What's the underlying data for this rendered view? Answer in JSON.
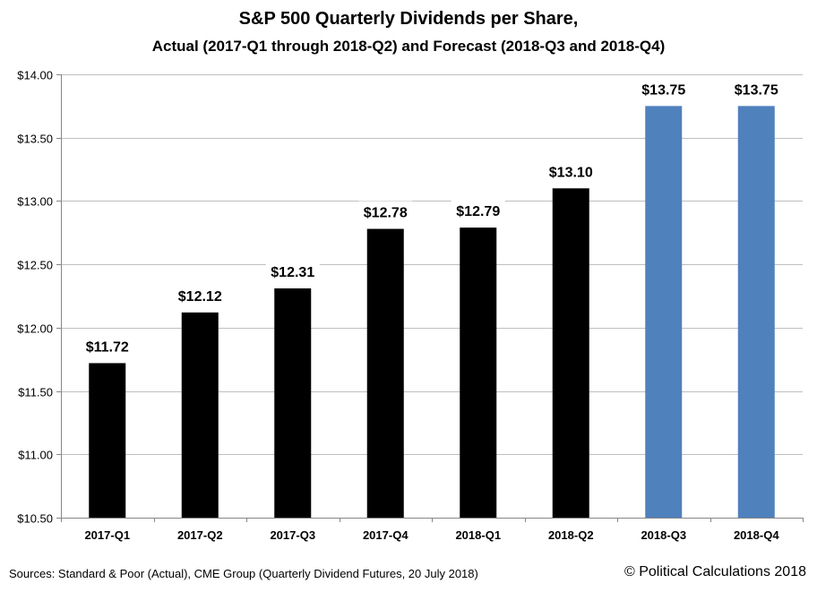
{
  "chart_data": {
    "type": "bar",
    "title": "S&P 500 Quarterly Dividends per Share,",
    "subtitle": "Actual (2017-Q1 through 2018-Q2) and Forecast (2018-Q3 and 2018-Q4)",
    "xlabel": "",
    "ylabel": "",
    "categories": [
      "2017-Q1",
      "2017-Q2",
      "2017-Q3",
      "2017-Q4",
      "2018-Q1",
      "2018-Q2",
      "2018-Q3",
      "2018-Q4"
    ],
    "values": [
      11.72,
      12.12,
      12.31,
      12.78,
      12.79,
      13.1,
      13.75,
      13.75
    ],
    "data_labels": [
      "$11.72",
      "$12.12",
      "$12.31",
      "$12.78",
      "$12.79",
      "$13.10",
      "$13.75",
      "$13.75"
    ],
    "series_type": [
      "actual",
      "actual",
      "actual",
      "actual",
      "actual",
      "actual",
      "forecast",
      "forecast"
    ],
    "colors": {
      "actual": "#000000",
      "forecast": "#4f81bd",
      "grid": "#bfbfbf",
      "axis": "#868686"
    },
    "ylim": [
      10.5,
      14.0
    ],
    "yticks": [
      10.5,
      11.0,
      11.5,
      12.0,
      12.5,
      13.0,
      13.5,
      14.0
    ],
    "ytick_labels": [
      "$10.50",
      "$11.00",
      "$11.50",
      "$12.00",
      "$12.50",
      "$13.00",
      "$13.50",
      "$14.00"
    ],
    "grid": true,
    "legend": "none"
  },
  "footer": {
    "sources": "Sources: Standard & Poor (Actual), CME Group (Quarterly Dividend Futures, 20 July 2018)",
    "copyright": "© Political Calculations 2018"
  }
}
